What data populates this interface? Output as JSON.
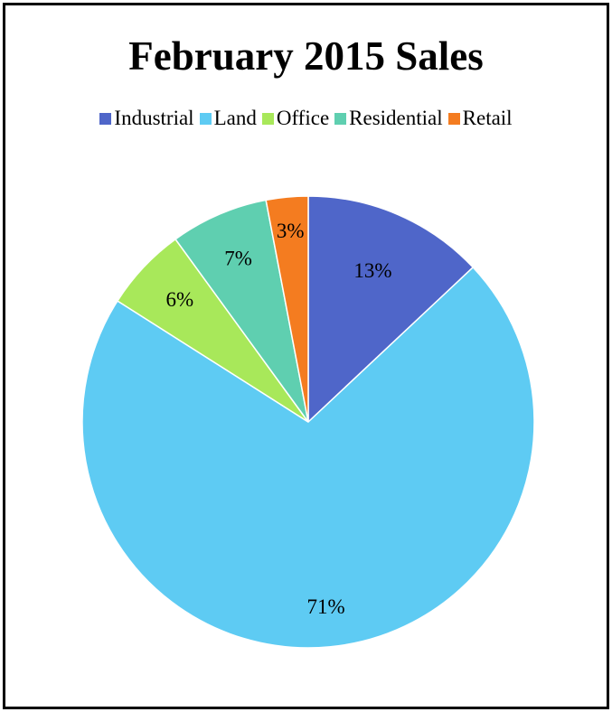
{
  "chart_data": {
    "type": "pie",
    "title": "February 2015 Sales",
    "legend_position": "top",
    "slices": [
      {
        "name": "Industrial",
        "value": 13,
        "label": "13%",
        "color": "#4f66c9"
      },
      {
        "name": "Land",
        "value": 71,
        "label": "71%",
        "color": "#5ecbf3"
      },
      {
        "name": "Office",
        "value": 6,
        "label": "6%",
        "color": "#a8e85a"
      },
      {
        "name": "Residential",
        "value": 7,
        "label": "7%",
        "color": "#5fcfb0"
      },
      {
        "name": "Retail",
        "value": 3,
        "label": "3%",
        "color": "#f47c20"
      }
    ]
  }
}
